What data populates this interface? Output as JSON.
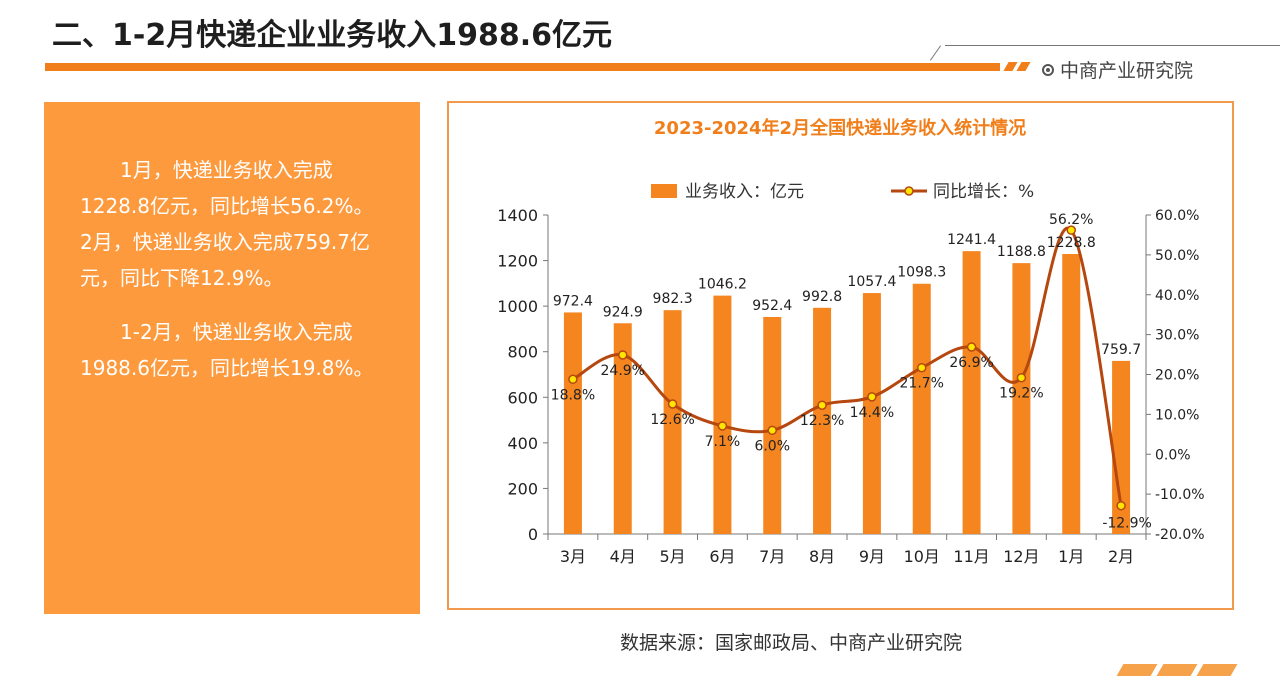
{
  "page_title": "二、1-2月快递企业业务收入1988.6亿元",
  "brand": "中商产业研究院",
  "paragraphs": [
    "1月，快递业务收入完成1228.8亿元，同比增长56.2%。2月，快递业务收入完成759.7亿元，同比下降12.9%。",
    "1-2月，快递业务收入完成1988.6亿元，同比增长19.8%。"
  ],
  "source": "数据来源：国家邮政局、中商产业研究院",
  "colors": {
    "accent": "#f07f1b",
    "bar": "#f5851f",
    "line": "#b5470f",
    "marker": "#ffe600",
    "panel": "#fd9a3e"
  },
  "chart_data": {
    "type": "bar",
    "title": "2023-2024年2月全国快递业务收入统计情况",
    "categories": [
      "3月",
      "4月",
      "5月",
      "6月",
      "7月",
      "8月",
      "9月",
      "10月",
      "11月",
      "12月",
      "1月",
      "2月"
    ],
    "series": [
      {
        "name": "业务收入：亿元",
        "type": "bar",
        "axis": "left",
        "values": [
          972.4,
          924.9,
          982.3,
          1046.2,
          952.4,
          992.8,
          1057.4,
          1098.3,
          1241.4,
          1188.8,
          1228.8,
          759.7
        ]
      },
      {
        "name": "同比增长：%",
        "type": "line",
        "axis": "right",
        "values": [
          18.8,
          24.9,
          12.6,
          7.1,
          6.0,
          12.3,
          14.4,
          21.7,
          26.9,
          19.2,
          56.2,
          -12.9
        ]
      }
    ],
    "ylim_left": [
      0,
      1400
    ],
    "yticks_left": [
      0,
      200,
      400,
      600,
      800,
      1000,
      1200,
      1400
    ],
    "ylim_right": [
      -20,
      60
    ],
    "yticks_right": [
      "-20.0%",
      "-10.0%",
      "0.0%",
      "10.0%",
      "20.0%",
      "30.0%",
      "40.0%",
      "50.0%",
      "60.0%"
    ],
    "legend_position": "top-center",
    "grid": false
  }
}
